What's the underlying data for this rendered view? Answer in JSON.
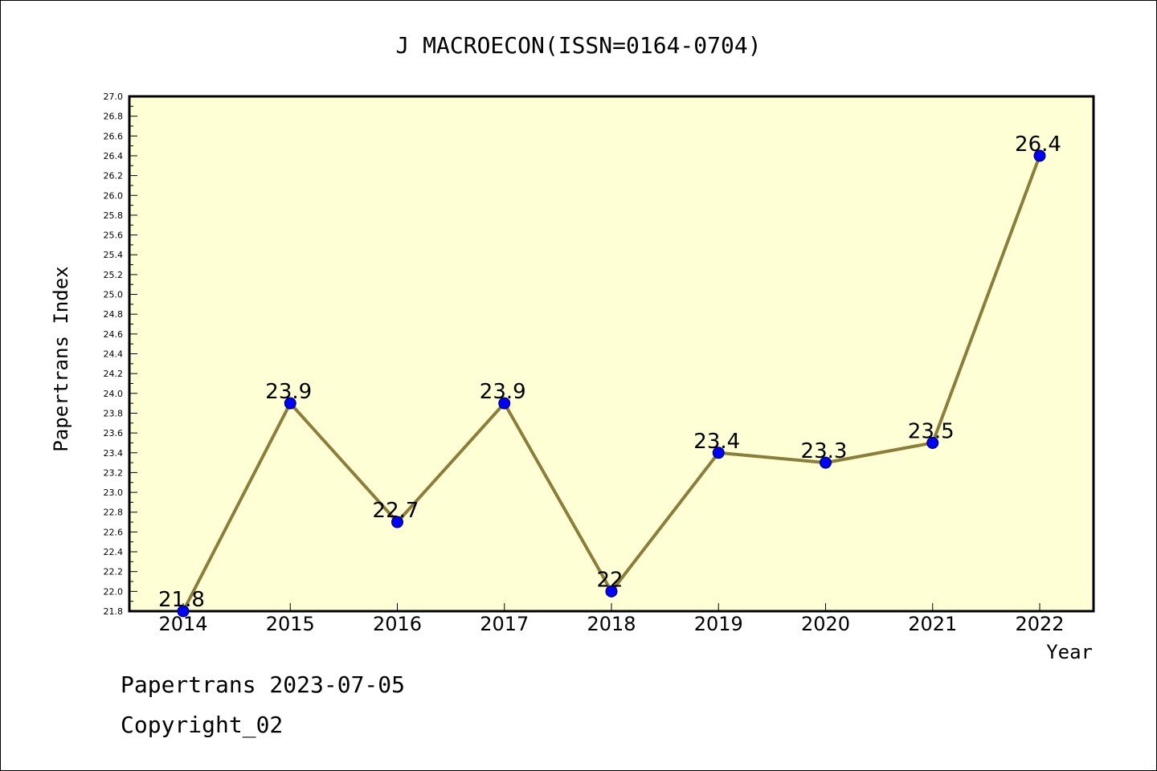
{
  "footer": {
    "line1": "Papertrans 2023-07-05",
    "line2": "Copyright_02"
  },
  "colors": {
    "plot_background": "#ffffd5",
    "line": "#8b7d3a",
    "marker": "#0000ff"
  },
  "chart_data": {
    "type": "line",
    "title": "J MACROECON(ISSN=0164-0704)",
    "xlabel": "Year",
    "ylabel": "Papertrans Index",
    "categories": [
      "2014",
      "2015",
      "2016",
      "2017",
      "2018",
      "2019",
      "2020",
      "2021",
      "2022"
    ],
    "values": [
      21.8,
      23.9,
      22.7,
      23.9,
      22.0,
      23.4,
      23.3,
      23.5,
      26.4
    ],
    "data_labels": [
      "21.8",
      "23.9",
      "22.7",
      "23.9",
      "22",
      "23.4",
      "23.3",
      "23.5",
      "26.4"
    ],
    "ylim": [
      21.8,
      27.0
    ],
    "yticks": [
      "21.8",
      "22.0",
      "22.2",
      "22.4",
      "22.6",
      "22.8",
      "23.0",
      "23.2",
      "23.4",
      "23.6",
      "23.8",
      "24.0",
      "24.2",
      "24.4",
      "24.6",
      "24.8",
      "25.0",
      "25.2",
      "25.4",
      "25.6",
      "25.8",
      "26.0",
      "26.2",
      "26.4",
      "26.6",
      "26.8",
      "27.0"
    ],
    "grid": false,
    "legend": "none"
  }
}
